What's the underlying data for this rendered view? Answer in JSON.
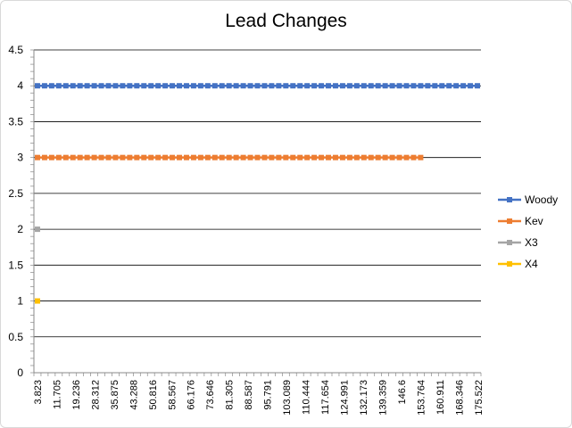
{
  "chart_data": {
    "type": "line",
    "title": "Lead Changes",
    "xlabel": "",
    "ylabel": "",
    "ylim": [
      0,
      4.5
    ],
    "yticks": [
      "0",
      "0.5",
      "1",
      "1.5",
      "2",
      "2.5",
      "3",
      "3.5",
      "4",
      "4.5"
    ],
    "x_tick_labels": [
      "3.823",
      "11.705",
      "19.236",
      "28.312",
      "35.875",
      "43.288",
      "50.816",
      "58.567",
      "66.176",
      "73.646",
      "81.305",
      "88.587",
      "95.791",
      "103.089",
      "110.444",
      "117.654",
      "124.991",
      "132.173",
      "139.359",
      "146.6",
      "153.764",
      "160.911",
      "168.346",
      "175.522"
    ],
    "num_categories": 63,
    "grid": true,
    "legend_position": "right",
    "series": [
      {
        "name": "Woody",
        "color": "#4472C4",
        "value": 4,
        "points": 63
      },
      {
        "name": "Kev",
        "color": "#ED7D31",
        "value": 3,
        "points": 55
      },
      {
        "name": "X3",
        "color": "#A5A5A5",
        "value": 2,
        "points": 1
      },
      {
        "name": "X4",
        "color": "#FFC000",
        "value": 1,
        "points": 1
      }
    ]
  }
}
